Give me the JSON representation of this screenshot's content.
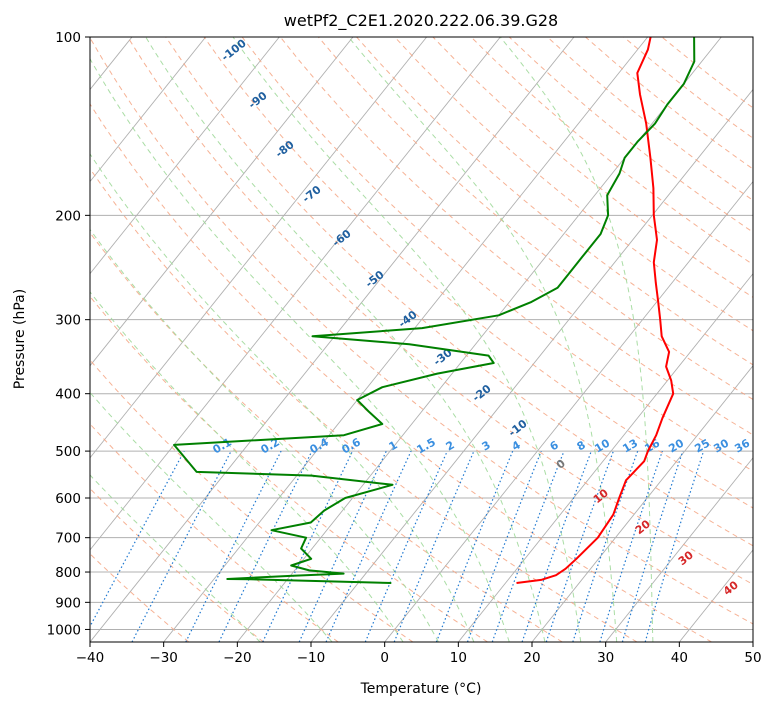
{
  "chart_data": {
    "type": "line",
    "title": "wetPf2_C2E1.2020.222.06.39.G28",
    "xlabel": "Temperature (°C)",
    "ylabel": "Pressure (hPa)",
    "xlim": [
      -40,
      50
    ],
    "ylim": [
      1050,
      100
    ],
    "y_scale": "log",
    "skew": true,
    "grid": true,
    "x_ticks": [
      -40,
      -30,
      -20,
      -10,
      0,
      10,
      20,
      30,
      40,
      50
    ],
    "y_ticks": [
      100,
      200,
      300,
      400,
      500,
      600,
      700,
      800,
      900,
      1000
    ],
    "series": [
      {
        "kind": "temperature",
        "color": "#ff0000",
        "points": [
          {
            "p": 835,
            "t": 11.5
          },
          {
            "p": 825,
            "t": 14.5
          },
          {
            "p": 810,
            "t": 16.0
          },
          {
            "p": 790,
            "t": 16.6
          },
          {
            "p": 760,
            "t": 17.0
          },
          {
            "p": 700,
            "t": 17.6
          },
          {
            "p": 640,
            "t": 17.2
          },
          {
            "p": 600,
            "t": 16.2
          },
          {
            "p": 560,
            "t": 15.2
          },
          {
            "p": 520,
            "t": 15.6
          },
          {
            "p": 500,
            "t": 15.0
          },
          {
            "p": 470,
            "t": 14.4
          },
          {
            "p": 440,
            "t": 13.4
          },
          {
            "p": 400,
            "t": 12.2
          },
          {
            "p": 380,
            "t": 10.5
          },
          {
            "p": 360,
            "t": 8.3
          },
          {
            "p": 340,
            "t": 7.1
          },
          {
            "p": 320,
            "t": 4.4
          },
          {
            "p": 300,
            "t": 2.4
          },
          {
            "p": 280,
            "t": 0.2
          },
          {
            "p": 260,
            "t": -2.2
          },
          {
            "p": 240,
            "t": -4.7
          },
          {
            "p": 220,
            "t": -6.7
          },
          {
            "p": 200,
            "t": -9.8
          },
          {
            "p": 180,
            "t": -12.8
          },
          {
            "p": 160,
            "t": -16.5
          },
          {
            "p": 140,
            "t": -20.8
          },
          {
            "p": 125,
            "t": -24.8
          },
          {
            "p": 115,
            "t": -27.5
          },
          {
            "p": 105,
            "t": -28.6
          },
          {
            "p": 100,
            "t": -29.6
          }
        ]
      },
      {
        "kind": "dewpoint",
        "color": "#008000",
        "points": [
          {
            "p": 835,
            "t": -5.5
          },
          {
            "p": 823,
            "t": -25.0
          },
          {
            "p": 822,
            "t": -28.2
          },
          {
            "p": 812,
            "t": -20.0
          },
          {
            "p": 805,
            "t": -13.0
          },
          {
            "p": 795,
            "t": -18.0
          },
          {
            "p": 780,
            "t": -21.0
          },
          {
            "p": 760,
            "t": -19.0
          },
          {
            "p": 730,
            "t": -21.5
          },
          {
            "p": 700,
            "t": -22.0
          },
          {
            "p": 680,
            "t": -27.5
          },
          {
            "p": 660,
            "t": -23.0
          },
          {
            "p": 630,
            "t": -22.5
          },
          {
            "p": 600,
            "t": -21.0
          },
          {
            "p": 570,
            "t": -16.0
          },
          {
            "p": 550,
            "t": -28.0
          },
          {
            "p": 542,
            "t": -44.0
          },
          {
            "p": 488,
            "t": -50.0
          },
          {
            "p": 470,
            "t": -28.0
          },
          {
            "p": 450,
            "t": -24.0
          },
          {
            "p": 430,
            "t": -27.0
          },
          {
            "p": 410,
            "t": -30.0
          },
          {
            "p": 390,
            "t": -28.0
          },
          {
            "p": 370,
            "t": -22.0
          },
          {
            "p": 355,
            "t": -15.5
          },
          {
            "p": 345,
            "t": -17.0
          },
          {
            "p": 330,
            "t": -29.0
          },
          {
            "p": 320,
            "t": -43.0
          },
          {
            "p": 310,
            "t": -29.0
          },
          {
            "p": 295,
            "t": -20.0
          },
          {
            "p": 280,
            "t": -17.0
          },
          {
            "p": 265,
            "t": -15.0
          },
          {
            "p": 250,
            "t": -15.0
          },
          {
            "p": 235,
            "t": -15.0
          },
          {
            "p": 215,
            "t": -15.0
          },
          {
            "p": 200,
            "t": -16.0
          },
          {
            "p": 185,
            "t": -18.3
          },
          {
            "p": 170,
            "t": -19.0
          },
          {
            "p": 160,
            "t": -20.0
          },
          {
            "p": 150,
            "t": -20.0
          },
          {
            "p": 140,
            "t": -19.6
          },
          {
            "p": 130,
            "t": -20.0
          },
          {
            "p": 120,
            "t": -20.0
          },
          {
            "p": 110,
            "t": -21.0
          },
          {
            "p": 100,
            "t": -23.7
          }
        ]
      }
    ],
    "dry_adiabats_theta_c": [
      -30,
      -20,
      -10,
      0,
      10,
      20,
      30,
      40,
      50,
      60,
      70,
      80,
      90,
      100,
      110,
      120,
      130,
      140,
      150,
      160,
      170,
      180,
      190,
      200
    ],
    "moist_adiabats_theta_c": [
      -20,
      -10,
      0,
      5,
      10,
      15,
      20,
      25,
      30,
      35
    ],
    "mixing_ratio_values": [
      "0.1",
      "0.2",
      "0.4",
      "0.6",
      "1",
      "1.5",
      "2",
      "3",
      "4",
      "6",
      "8",
      "10",
      "13",
      "16",
      "20",
      "25",
      "30",
      "36"
    ],
    "isotherm_labels": [
      "-100",
      "-90",
      "-80",
      "-70",
      "-60",
      "-50",
      "-40",
      "-30",
      "-20",
      "-10"
    ],
    "isotherm_zero_label": "0",
    "warm_isotherm_labels": [
      "10",
      "20",
      "30",
      "40"
    ],
    "colors": {
      "temperature": "#ff0000",
      "dewpoint": "#008000",
      "dry_adiabat": "#f4a582",
      "moist_adiabat": "#a1d99b",
      "mixing_ratio": "#1f78d0",
      "isotherm_label_cold": "#1f5f9f",
      "isotherm_label_warm": "#d62728",
      "grid": "#b0b0b0"
    }
  }
}
